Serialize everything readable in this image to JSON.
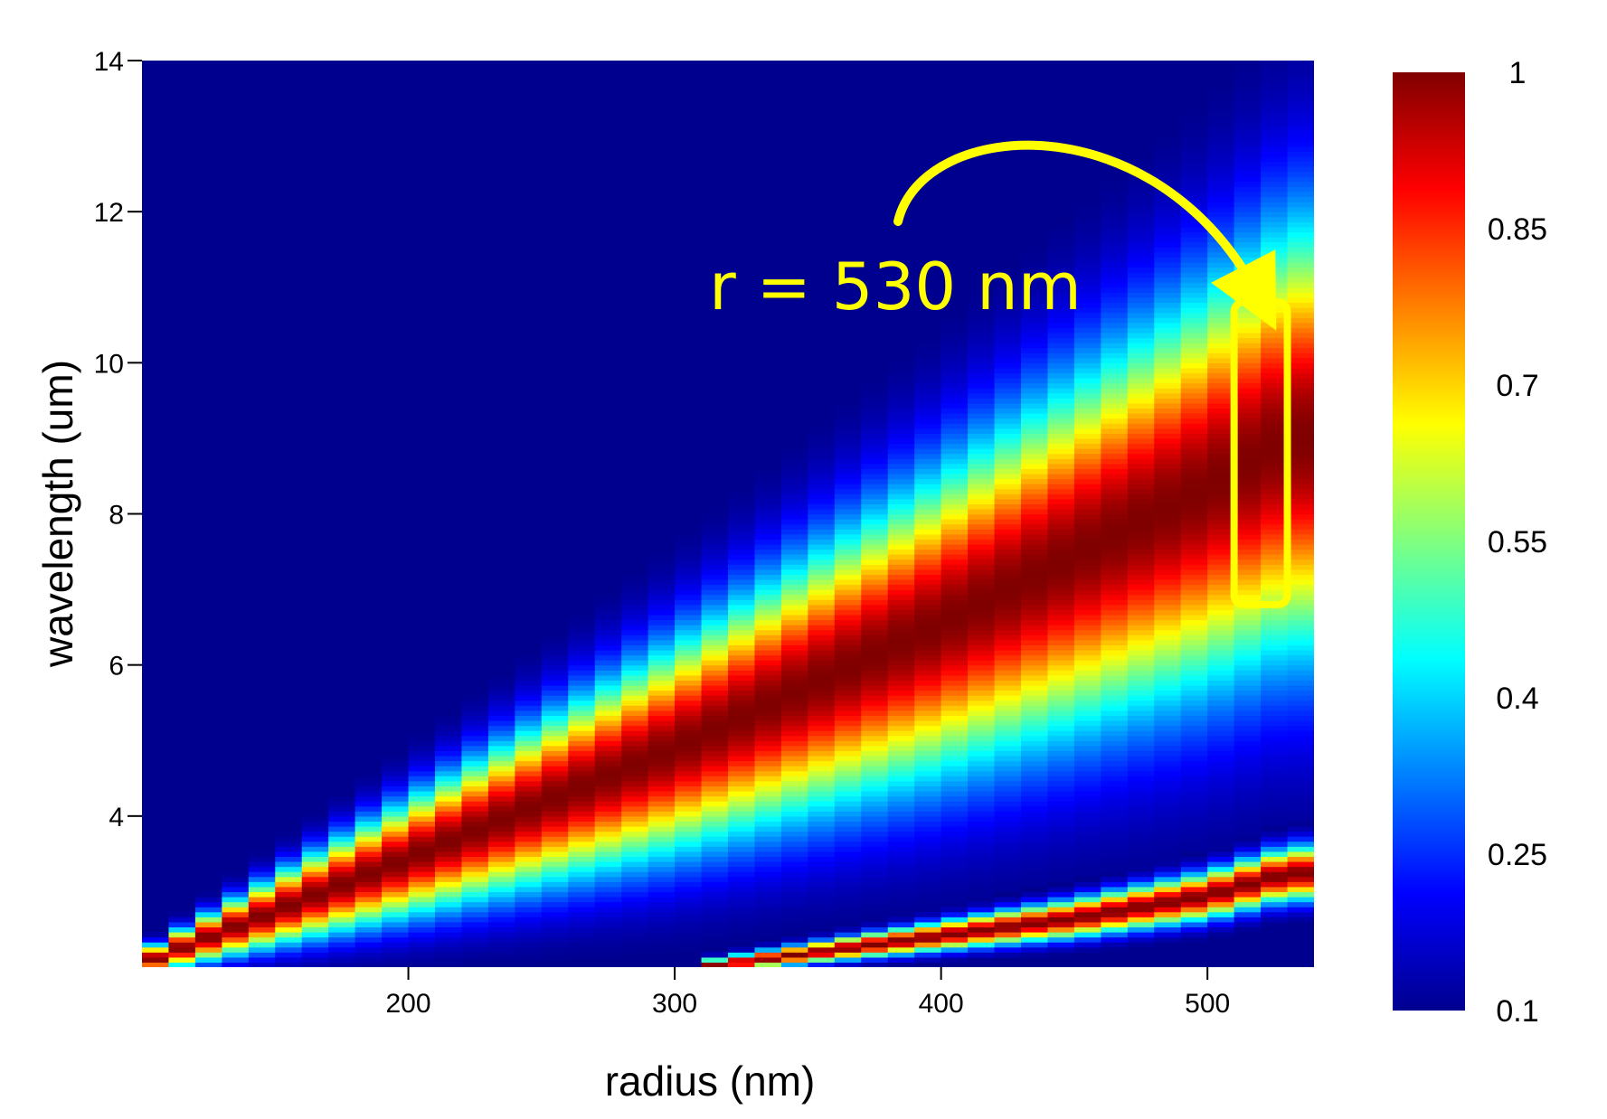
{
  "chart_data": {
    "type": "heatmap",
    "title": "",
    "xlabel": "radius (nm)",
    "ylabel": "wavelength (um)",
    "xlim": [
      100,
      540
    ],
    "ylim": [
      2,
      14
    ],
    "x_ticks": [
      200,
      300,
      400,
      500
    ],
    "y_ticks": [
      4,
      6,
      8,
      10,
      12,
      14
    ],
    "grid": false,
    "colormap": "jet",
    "colorbar": {
      "range": [
        0.1,
        1
      ],
      "tick_values": [
        0.1,
        0.25,
        0.4,
        0.55,
        0.7,
        0.85,
        1
      ],
      "tick_labels": [
        "0.1",
        "0.25",
        "0.4",
        "0.55",
        "0.7",
        "0.85",
        "1"
      ]
    },
    "background_value": 0.1,
    "x_step": 10,
    "bands": [
      {
        "points": [
          {
            "x": 100,
            "y": 2.05
          },
          {
            "x": 200,
            "y": 3.45
          },
          {
            "x": 300,
            "y": 4.9
          },
          {
            "x": 400,
            "y": 6.55
          },
          {
            "x": 450,
            "y": 7.45
          },
          {
            "x": 500,
            "y": 8.35
          },
          {
            "x": 530,
            "y": 9.0
          }
        ]
      },
      {
        "points": [
          {
            "x": 310,
            "y": 2.0
          },
          {
            "x": 400,
            "y": 2.42
          },
          {
            "x": 450,
            "y": 2.65
          },
          {
            "x": 500,
            "y": 2.95
          },
          {
            "x": 530,
            "y": 3.25
          }
        ]
      }
    ],
    "annotation": {
      "text": "r = 530 nm",
      "color": "#ffff00",
      "box_x_range": [
        510,
        530
      ],
      "box_y_range": [
        6.8,
        10.8
      ]
    }
  }
}
